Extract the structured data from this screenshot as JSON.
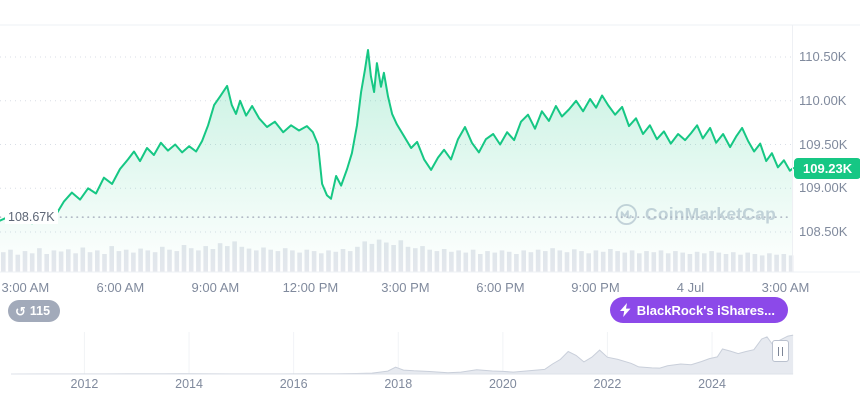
{
  "colors": {
    "accent_green": "#16c784",
    "badge_purple": "#8c49e9",
    "badge_gray": "#a2aaba",
    "axis_text": "#808a9d",
    "grid_line": "#d9dee6",
    "volume_bar": "#e4e7ed",
    "navigator_fill": "#e7eaf0",
    "navigator_stroke": "#c9cfda"
  },
  "watermark": {
    "label": "CoinMarketCap"
  },
  "history_badge": {
    "count": "115"
  },
  "news_badge": {
    "label": "BlackRock's iShares..."
  },
  "chart_data": [
    {
      "type": "area",
      "name": "btc-price-24h",
      "title": "BTC price, 3:00 AM Jul 3 to 3:00 AM Jul 4 (thousands USD)",
      "x_unit": "hour-of-day (24h+ continuation)",
      "xlim": [
        2.2,
        27.3
      ],
      "ylim": [
        108.3,
        110.8
      ],
      "line_color": "#16c784",
      "grid": true,
      "yticks": [
        {
          "label": "110.50K",
          "value": 110.5
        },
        {
          "label": "110.00K",
          "value": 110.0
        },
        {
          "label": "109.50K",
          "value": 109.5
        },
        {
          "label": "109.00K",
          "value": 109.0
        },
        {
          "label": "108.50K",
          "value": 108.5
        }
      ],
      "xticks": [
        {
          "label": "3:00 AM",
          "hour": 3
        },
        {
          "label": "6:00 AM",
          "hour": 6
        },
        {
          "label": "9:00 AM",
          "hour": 9
        },
        {
          "label": "12:00 PM",
          "hour": 12
        },
        {
          "label": "3:00 PM",
          "hour": 15
        },
        {
          "label": "6:00 PM",
          "hour": 18
        },
        {
          "label": "9:00 PM",
          "hour": 21
        },
        {
          "label": "4 Jul",
          "hour": 24
        },
        {
          "label": "3:00 AM",
          "hour": 27
        }
      ],
      "current_price": {
        "label": "109.23K",
        "value": 109.23
      },
      "reference_line": {
        "label": "108.67K",
        "value": 108.67
      },
      "points": [
        [
          2.2,
          108.63
        ],
        [
          2.45,
          108.67
        ],
        [
          2.71,
          108.61
        ],
        [
          2.96,
          108.66
        ],
        [
          3.21,
          108.6
        ],
        [
          3.46,
          108.7
        ],
        [
          3.72,
          108.74
        ],
        [
          3.97,
          108.7
        ],
        [
          4.22,
          108.85
        ],
        [
          4.47,
          108.95
        ],
        [
          4.73,
          108.87
        ],
        [
          4.98,
          109.0
        ],
        [
          5.23,
          108.94
        ],
        [
          5.48,
          109.12
        ],
        [
          5.74,
          109.05
        ],
        [
          5.99,
          109.22
        ],
        [
          6.24,
          109.33
        ],
        [
          6.43,
          109.42
        ],
        [
          6.62,
          109.31
        ],
        [
          6.84,
          109.46
        ],
        [
          7.06,
          109.38
        ],
        [
          7.28,
          109.52
        ],
        [
          7.5,
          109.43
        ],
        [
          7.73,
          109.5
        ],
        [
          7.95,
          109.41
        ],
        [
          8.17,
          109.48
        ],
        [
          8.39,
          109.42
        ],
        [
          8.58,
          109.54
        ],
        [
          8.77,
          109.72
        ],
        [
          8.96,
          109.95
        ],
        [
          9.15,
          110.05
        ],
        [
          9.37,
          110.17
        ],
        [
          9.52,
          109.95
        ],
        [
          9.65,
          109.85
        ],
        [
          9.78,
          110.0
        ],
        [
          9.97,
          109.83
        ],
        [
          10.16,
          109.94
        ],
        [
          10.38,
          109.8
        ],
        [
          10.63,
          109.7
        ],
        [
          10.88,
          109.76
        ],
        [
          11.14,
          109.64
        ],
        [
          11.39,
          109.72
        ],
        [
          11.64,
          109.66
        ],
        [
          11.89,
          109.71
        ],
        [
          12.08,
          109.64
        ],
        [
          12.24,
          109.5
        ],
        [
          12.37,
          109.05
        ],
        [
          12.52,
          108.92
        ],
        [
          12.65,
          108.88
        ],
        [
          12.81,
          109.14
        ],
        [
          12.97,
          109.03
        ],
        [
          13.16,
          109.22
        ],
        [
          13.31,
          109.4
        ],
        [
          13.47,
          109.72
        ],
        [
          13.6,
          110.1
        ],
        [
          13.72,
          110.35
        ],
        [
          13.82,
          110.58
        ],
        [
          13.91,
          110.28
        ],
        [
          14.01,
          110.1
        ],
        [
          14.1,
          110.43
        ],
        [
          14.23,
          110.16
        ],
        [
          14.32,
          110.32
        ],
        [
          14.45,
          110.05
        ],
        [
          14.58,
          109.85
        ],
        [
          14.73,
          109.73
        ],
        [
          14.95,
          109.6
        ],
        [
          15.18,
          109.46
        ],
        [
          15.37,
          109.53
        ],
        [
          15.59,
          109.33
        ],
        [
          15.81,
          109.21
        ],
        [
          16.03,
          109.35
        ],
        [
          16.22,
          109.44
        ],
        [
          16.44,
          109.33
        ],
        [
          16.66,
          109.56
        ],
        [
          16.88,
          109.7
        ],
        [
          17.1,
          109.52
        ],
        [
          17.32,
          109.41
        ],
        [
          17.54,
          109.56
        ],
        [
          17.77,
          109.62
        ],
        [
          17.99,
          109.5
        ],
        [
          18.21,
          109.64
        ],
        [
          18.43,
          109.55
        ],
        [
          18.65,
          109.76
        ],
        [
          18.87,
          109.84
        ],
        [
          19.09,
          109.68
        ],
        [
          19.31,
          109.88
        ],
        [
          19.53,
          109.77
        ],
        [
          19.75,
          109.94
        ],
        [
          19.94,
          109.82
        ],
        [
          20.16,
          109.9
        ],
        [
          20.39,
          110.0
        ],
        [
          20.61,
          109.88
        ],
        [
          20.83,
          110.02
        ],
        [
          21.02,
          109.92
        ],
        [
          21.21,
          110.06
        ],
        [
          21.4,
          109.95
        ],
        [
          21.62,
          109.84
        ],
        [
          21.84,
          109.93
        ],
        [
          22.06,
          109.71
        ],
        [
          22.28,
          109.8
        ],
        [
          22.5,
          109.62
        ],
        [
          22.72,
          109.72
        ],
        [
          22.94,
          109.56
        ],
        [
          23.16,
          109.65
        ],
        [
          23.38,
          109.51
        ],
        [
          23.61,
          109.62
        ],
        [
          23.83,
          109.55
        ],
        [
          24.02,
          109.63
        ],
        [
          24.21,
          109.72
        ],
        [
          24.39,
          109.57
        ],
        [
          24.62,
          109.69
        ],
        [
          24.81,
          109.52
        ],
        [
          25.03,
          109.62
        ],
        [
          25.25,
          109.47
        ],
        [
          25.44,
          109.59
        ],
        [
          25.63,
          109.69
        ],
        [
          25.82,
          109.54
        ],
        [
          26.01,
          109.42
        ],
        [
          26.2,
          109.51
        ],
        [
          26.39,
          109.31
        ],
        [
          26.57,
          109.4
        ],
        [
          26.76,
          109.24
        ],
        [
          26.95,
          109.32
        ],
        [
          27.14,
          109.2
        ],
        [
          27.24,
          109.23
        ]
      ]
    },
    {
      "type": "bar",
      "name": "volume",
      "title": "Trading volume (relative height, unlabeled)",
      "values": [
        0.55,
        0.62,
        0.48,
        0.58,
        0.52,
        0.66,
        0.5,
        0.6,
        0.57,
        0.63,
        0.52,
        0.68,
        0.55,
        0.6,
        0.5,
        0.72,
        0.58,
        0.62,
        0.54,
        0.65,
        0.6,
        0.55,
        0.7,
        0.62,
        0.58,
        0.75,
        0.66,
        0.6,
        0.72,
        0.64,
        0.8,
        0.72,
        0.85,
        0.7,
        0.65,
        0.6,
        0.68,
        0.62,
        0.58,
        0.66,
        0.6,
        0.54,
        0.62,
        0.58,
        0.52,
        0.6,
        0.56,
        0.64,
        0.58,
        0.7,
        0.85,
        0.78,
        0.9,
        0.82,
        0.75,
        0.88,
        0.7,
        0.66,
        0.72,
        0.62,
        0.58,
        0.64,
        0.56,
        0.6,
        0.54,
        0.62,
        0.5,
        0.58,
        0.54,
        0.6,
        0.56,
        0.5,
        0.6,
        0.55,
        0.62,
        0.58,
        0.66,
        0.6,
        0.55,
        0.63,
        0.58,
        0.52,
        0.6,
        0.56,
        0.64,
        0.58,
        0.54,
        0.6,
        0.52,
        0.58,
        0.55,
        0.6,
        0.52,
        0.58,
        0.54,
        0.5,
        0.56,
        0.52,
        0.58,
        0.54,
        0.5,
        0.55,
        0.48,
        0.54,
        0.5,
        0.46,
        0.52,
        0.48,
        0.5,
        0.46
      ]
    },
    {
      "type": "area",
      "name": "btc-history-navigator",
      "title": "All-time BTC price navigator (thousands USD)",
      "xlim": [
        2010.5,
        2025.6
      ],
      "ylim": [
        0,
        112
      ],
      "xticks": [
        2012,
        2014,
        2016,
        2018,
        2020,
        2022,
        2024
      ],
      "points": [
        [
          2010.6,
          0.1
        ],
        [
          2011.2,
          0.2
        ],
        [
          2011.8,
          0.3
        ],
        [
          2012.4,
          0.4
        ],
        [
          2013.0,
          0.8
        ],
        [
          2013.5,
          0.9
        ],
        [
          2013.9,
          1.1
        ],
        [
          2014.3,
          0.8
        ],
        [
          2014.8,
          0.4
        ],
        [
          2015.3,
          0.3
        ],
        [
          2015.8,
          0.4
        ],
        [
          2016.3,
          0.6
        ],
        [
          2016.8,
          0.9
        ],
        [
          2017.2,
          1.5
        ],
        [
          2017.5,
          2.6
        ],
        [
          2017.8,
          8.0
        ],
        [
          2017.95,
          19.0
        ],
        [
          2018.1,
          11.0
        ],
        [
          2018.3,
          9.0
        ],
        [
          2018.6,
          7.0
        ],
        [
          2018.95,
          3.7
        ],
        [
          2019.2,
          5.2
        ],
        [
          2019.5,
          12.0
        ],
        [
          2019.8,
          8.5
        ],
        [
          2020.0,
          7.2
        ],
        [
          2020.2,
          5.3
        ],
        [
          2020.5,
          9.2
        ],
        [
          2020.8,
          13.0
        ],
        [
          2020.95,
          28.0
        ],
        [
          2021.1,
          41.0
        ],
        [
          2021.25,
          63.0
        ],
        [
          2021.4,
          52.0
        ],
        [
          2021.55,
          34.0
        ],
        [
          2021.7,
          47.0
        ],
        [
          2021.85,
          67.0
        ],
        [
          2022.0,
          47.0
        ],
        [
          2022.2,
          41.0
        ],
        [
          2022.45,
          30.0
        ],
        [
          2022.6,
          20.0
        ],
        [
          2022.85,
          17.0
        ],
        [
          2023.0,
          16.5
        ],
        [
          2023.15,
          23.0
        ],
        [
          2023.4,
          28.0
        ],
        [
          2023.6,
          26.0
        ],
        [
          2023.8,
          35.0
        ],
        [
          2023.95,
          43.0
        ],
        [
          2024.1,
          48.0
        ],
        [
          2024.2,
          70.0
        ],
        [
          2024.35,
          64.0
        ],
        [
          2024.5,
          57.0
        ],
        [
          2024.65,
          63.0
        ],
        [
          2024.8,
          68.0
        ],
        [
          2024.95,
          98.0
        ],
        [
          2025.05,
          104.0
        ],
        [
          2025.15,
          84.0
        ],
        [
          2025.3,
          95.0
        ],
        [
          2025.45,
          106.0
        ],
        [
          2025.55,
          109.0
        ]
      ]
    }
  ]
}
